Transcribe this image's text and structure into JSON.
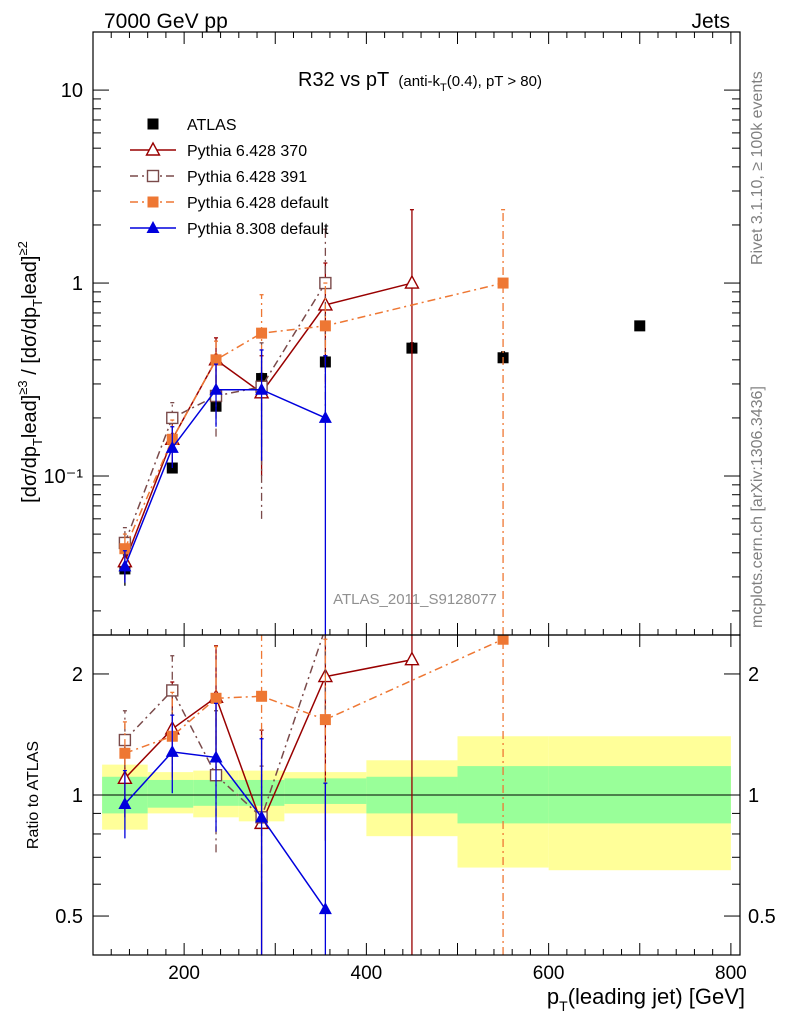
{
  "header": {
    "left": "7000 GeV pp",
    "right": "Jets",
    "side_top": "Rivet 3.1.10, ≥ 100k events",
    "side_bottom": "mcplots.cern.ch [arXiv:1306.3436]",
    "watermark": "ATLAS_2011_S9128077"
  },
  "chart_data": [
    {
      "type": "line",
      "panel": "main",
      "title_main": "R32 vs pT",
      "title_sub": "(anti-k",
      "title_sub_subscript": "T",
      "title_sub_rest": "(0.4), pT > 80)",
      "ylabel": "[dσ/dp",
      "ylabel_full": "[dσ/dp T lead]≥3 / [dσ/dp T lead]≥2",
      "yscale": "log",
      "ylim": [
        0.015,
        20
      ],
      "xlim": [
        100,
        810
      ],
      "y_ticks": [
        {
          "value": 10,
          "label": "10"
        },
        {
          "value": 1,
          "label": "1"
        },
        {
          "value": 0.1,
          "label": "10⁻¹"
        }
      ],
      "legend_position": "top-left",
      "series": [
        {
          "name": "ATLAS",
          "color": "#000000",
          "marker": "square-filled",
          "line": "none",
          "points": [
            {
              "x": 135,
              "y": 0.033,
              "err": [
                0.006,
                0.006
              ]
            },
            {
              "x": 187,
              "y": 0.11,
              "err": [
                0.005,
                0.005
              ]
            },
            {
              "x": 235,
              "y": 0.23,
              "err": [
                0.01,
                0.01
              ]
            },
            {
              "x": 285,
              "y": 0.32,
              "err": [
                0.02,
                0.02
              ]
            },
            {
              "x": 355,
              "y": 0.39,
              "err": [
                0.03,
                0.03
              ]
            },
            {
              "x": 450,
              "y": 0.46,
              "err": [
                0.03,
                0.03
              ]
            },
            {
              "x": 550,
              "y": 0.41,
              "err": [
                0.03,
                0.03
              ]
            },
            {
              "x": 700,
              "y": 0.6,
              "err": [
                0.03,
                0.03
              ]
            }
          ]
        },
        {
          "name": "Pythia 6.428 370",
          "color": "#990000",
          "marker": "triangle-open",
          "line": "solid",
          "points": [
            {
              "x": 135,
              "y": 0.036,
              "err": [
                0.007,
                0.009
              ]
            },
            {
              "x": 187,
              "y": 0.155,
              "err": [
                0.04,
                0.05
              ]
            },
            {
              "x": 235,
              "y": 0.4,
              "err": [
                0.13,
                0.12
              ]
            },
            {
              "x": 285,
              "y": 0.27,
              "err": [
                0.17,
                0.15
              ]
            },
            {
              "x": 355,
              "y": 0.77,
              "err": [
                0.4,
                0.5
              ]
            },
            {
              "x": 450,
              "y": 1.0,
              "err": [
                1.0,
                1.4
              ]
            }
          ]
        },
        {
          "name": "Pythia 6.428 391",
          "color": "#7a4a4a",
          "marker": "square-open",
          "line": "dashdot",
          "points": [
            {
              "x": 135,
              "y": 0.045,
              "err": [
                0.007,
                0.009
              ]
            },
            {
              "x": 187,
              "y": 0.2,
              "err": [
                0.04,
                0.04
              ]
            },
            {
              "x": 235,
              "y": 0.26,
              "err": [
                0.1,
                0.12
              ]
            },
            {
              "x": 285,
              "y": 0.29,
              "err": [
                0.23,
                0.2
              ]
            },
            {
              "x": 355,
              "y": 1.0,
              "err": [
                0.8,
                0.9
              ]
            }
          ]
        },
        {
          "name": "Pythia 6.428 default",
          "color": "#ee7733",
          "marker": "square-filled",
          "line": "dashdot",
          "points": [
            {
              "x": 135,
              "y": 0.042,
              "err": [
                0.006,
                0.008
              ]
            },
            {
              "x": 187,
              "y": 0.155,
              "err": [
                0.03,
                0.04
              ]
            },
            {
              "x": 235,
              "y": 0.4,
              "err": [
                0.1,
                0.1
              ]
            },
            {
              "x": 285,
              "y": 0.55,
              "err": [
                0.2,
                0.32
              ]
            },
            {
              "x": 355,
              "y": 0.6,
              "err": [
                0.3,
                0.4
              ]
            },
            {
              "x": 550,
              "y": 1.0,
              "err": [
                1.0,
                1.4
              ]
            }
          ]
        },
        {
          "name": "Pythia 8.308 default",
          "color": "#0000dd",
          "marker": "triangle-filled",
          "line": "solid",
          "points": [
            {
              "x": 135,
              "y": 0.034,
              "err": [
                0.006,
                0.007
              ]
            },
            {
              "x": 187,
              "y": 0.14,
              "err": [
                0.03,
                0.04
              ]
            },
            {
              "x": 235,
              "y": 0.28,
              "err": [
                0.1,
                0.1
              ]
            },
            {
              "x": 285,
              "y": 0.28,
              "err": [
                0.16,
                0.17
              ]
            },
            {
              "x": 355,
              "y": 0.2,
              "err": [
                0.2,
                0.22
              ]
            }
          ]
        }
      ]
    },
    {
      "type": "line",
      "panel": "ratio",
      "ylabel": "Ratio to ATLAS",
      "xlabel": "p",
      "xlabel_subscript": "T",
      "xlabel_rest": "(leading jet) [GeV]",
      "yscale": "log",
      "ylim": [
        0.4,
        2.5
      ],
      "y_ticks": [
        {
          "value": 2,
          "label": "2"
        },
        {
          "value": 1,
          "label": "1"
        },
        {
          "value": 0.5,
          "label": "0.5"
        }
      ],
      "x_ticks": [
        {
          "value": 200,
          "label": "200"
        },
        {
          "value": 400,
          "label": "400"
        },
        {
          "value": 600,
          "label": "600"
        },
        {
          "value": 800,
          "label": "800"
        }
      ],
      "bands": [
        {
          "x0": 110,
          "x1": 160,
          "stat": [
            0.9,
            1.11
          ],
          "total": [
            0.82,
            1.19
          ]
        },
        {
          "x0": 160,
          "x1": 210,
          "stat": [
            0.93,
            1.09
          ],
          "total": [
            0.9,
            1.14
          ]
        },
        {
          "x0": 210,
          "x1": 260,
          "stat": [
            0.94,
            1.09
          ],
          "total": [
            0.88,
            1.15
          ]
        },
        {
          "x0": 260,
          "x1": 310,
          "stat": [
            0.94,
            1.09
          ],
          "total": [
            0.86,
            1.15
          ]
        },
        {
          "x0": 310,
          "x1": 400,
          "stat": [
            0.95,
            1.1
          ],
          "total": [
            0.9,
            1.14
          ]
        },
        {
          "x0": 400,
          "x1": 500,
          "stat": [
            0.9,
            1.11
          ],
          "total": [
            0.79,
            1.22
          ]
        },
        {
          "x0": 500,
          "x1": 600,
          "stat": [
            0.85,
            1.18
          ],
          "total": [
            0.66,
            1.4
          ]
        },
        {
          "x0": 600,
          "x1": 800,
          "stat": [
            0.85,
            1.18
          ],
          "total": [
            0.65,
            1.4
          ]
        }
      ],
      "series": [
        {
          "name": "Pythia 6.428 370",
          "color": "#990000",
          "marker": "triangle-open",
          "line": "solid",
          "points": [
            {
              "x": 135,
              "y": 1.1,
              "err": [
                0.22,
                0.27
              ]
            },
            {
              "x": 187,
              "y": 1.46,
              "err": [
                0.35,
                0.45
              ]
            },
            {
              "x": 235,
              "y": 1.75,
              "err": [
                0.6,
                0.6
              ]
            },
            {
              "x": 285,
              "y": 0.85,
              "err": [
                0.45,
                0.6
              ]
            },
            {
              "x": 355,
              "y": 1.97,
              "err": [
                1.2,
                1.3
              ]
            },
            {
              "x": 450,
              "y": 2.17,
              "err": [
                2.1,
                2.0
              ]
            }
          ]
        },
        {
          "name": "Pythia 6.428 391",
          "color": "#7a4a4a",
          "marker": "square-open",
          "line": "dashdot",
          "points": [
            {
              "x": 135,
              "y": 1.37,
              "err": [
                0.2,
                0.25
              ]
            },
            {
              "x": 187,
              "y": 1.82,
              "err": [
                0.4,
                0.4
              ]
            },
            {
              "x": 235,
              "y": 1.12,
              "err": [
                0.4,
                0.5
              ]
            },
            {
              "x": 285,
              "y": 0.88,
              "err": [
                0.3,
                0.3
              ]
            },
            {
              "x": 355,
              "y": 2.6,
              "err": [
                1.0,
                1.0
              ]
            }
          ]
        },
        {
          "name": "Pythia 6.428 default",
          "color": "#ee7733",
          "marker": "square-filled",
          "line": "dashdot",
          "points": [
            {
              "x": 135,
              "y": 1.27,
              "err": [
                0.2,
                0.25
              ]
            },
            {
              "x": 187,
              "y": 1.4,
              "err": [
                0.3,
                0.4
              ]
            },
            {
              "x": 235,
              "y": 1.74,
              "err": [
                0.5,
                0.6
              ]
            },
            {
              "x": 285,
              "y": 1.76,
              "err": [
                0.7,
                0.9
              ]
            },
            {
              "x": 355,
              "y": 1.54,
              "err": [
                0.7,
                0.9
              ]
            },
            {
              "x": 550,
              "y": 2.44,
              "err": [
                2.4,
                2.4
              ]
            }
          ]
        },
        {
          "name": "Pythia 8.308 default",
          "color": "#0000dd",
          "marker": "triangle-filled",
          "line": "solid",
          "points": [
            {
              "x": 135,
              "y": 0.95,
              "err": [
                0.17,
                0.2
              ]
            },
            {
              "x": 187,
              "y": 1.28,
              "err": [
                0.27,
                0.3
              ]
            },
            {
              "x": 235,
              "y": 1.24,
              "err": [
                0.43,
                0.45
              ]
            },
            {
              "x": 285,
              "y": 0.88,
              "err": [
                0.5,
                0.5
              ]
            },
            {
              "x": 355,
              "y": 0.52,
              "err": [
                0.52,
                0.55
              ]
            }
          ]
        }
      ]
    }
  ]
}
